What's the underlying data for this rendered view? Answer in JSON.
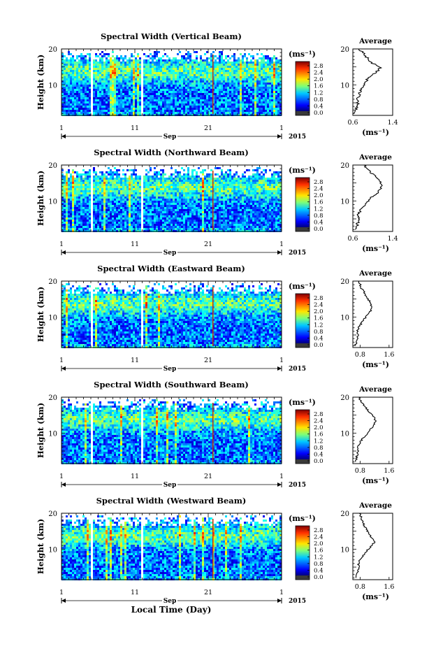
{
  "figure": {
    "xlabel": "Local Time (Day)",
    "month_label": "Sep",
    "year_label": "2015",
    "colorbar_unit": "(ms⁻¹)",
    "colorbar_ticks": [
      "0.0",
      "0.4",
      "0.8",
      "1.2",
      "1.6",
      "2.0",
      "2.4",
      "2.8"
    ],
    "avg_title": "Average",
    "avg_unit": "(ms⁻¹)"
  },
  "chart_data": [
    {
      "type": "heatmap",
      "title": "Spectral Width (Vertical Beam)",
      "ylabel": "Height (km)",
      "x_ticks": [
        "1",
        "11",
        "21",
        "1"
      ],
      "y_ticks": [
        "10",
        "20"
      ],
      "ylim": [
        1.5,
        20
      ],
      "colorbar": {
        "min": 0.0,
        "max": 2.8,
        "ticks": [
          0.0,
          0.4,
          0.8,
          1.2,
          1.6,
          2.0,
          2.4,
          2.8
        ]
      },
      "profile": {
        "title": "Average",
        "x_ticks": [
          "0.6",
          "1.4"
        ],
        "xlim": [
          0.6,
          1.4
        ],
        "height_km": [
          2,
          3,
          4,
          5,
          6,
          7,
          8,
          9,
          10,
          11,
          12,
          13,
          14,
          15,
          16,
          17,
          18,
          19,
          20
        ],
        "values": [
          0.62,
          0.66,
          0.68,
          0.7,
          0.68,
          0.72,
          0.74,
          0.78,
          0.82,
          0.86,
          0.92,
          1.02,
          1.1,
          1.16,
          1.0,
          0.92,
          0.86,
          0.8,
          0.72
        ]
      }
    },
    {
      "type": "heatmap",
      "title": "Spectral Width (Northward Beam)",
      "ylabel": "Height (km)",
      "x_ticks": [
        "1",
        "11",
        "21",
        "1"
      ],
      "y_ticks": [
        "10",
        "20"
      ],
      "ylim": [
        1.5,
        20
      ],
      "colorbar": {
        "min": 0.0,
        "max": 2.8,
        "ticks": [
          0.0,
          0.4,
          0.8,
          1.2,
          1.6,
          2.0,
          2.4,
          2.8
        ]
      },
      "profile": {
        "title": "Average",
        "x_ticks": [
          "0.6",
          "1.4"
        ],
        "xlim": [
          0.6,
          1.4
        ],
        "height_km": [
          2,
          3,
          4,
          5,
          6,
          7,
          8,
          9,
          10,
          11,
          12,
          13,
          14,
          15,
          16,
          17,
          18,
          19,
          20
        ],
        "values": [
          0.64,
          0.68,
          0.7,
          0.72,
          0.7,
          0.74,
          0.78,
          0.84,
          0.9,
          0.98,
          1.08,
          1.14,
          1.18,
          1.16,
          1.12,
          1.04,
          0.96,
          0.88,
          0.82
        ]
      }
    },
    {
      "type": "heatmap",
      "title": "Spectral Width (Eastward Beam)",
      "ylabel": "Height (km)",
      "x_ticks": [
        "1",
        "11",
        "21",
        "1"
      ],
      "y_ticks": [
        "10",
        "20"
      ],
      "ylim": [
        1.5,
        20
      ],
      "colorbar": {
        "min": 0.0,
        "max": 2.8,
        "ticks": [
          0.0,
          0.4,
          0.8,
          1.2,
          1.6,
          2.0,
          2.4,
          2.8
        ]
      },
      "profile": {
        "title": "Average",
        "x_ticks": [
          "0.8",
          "1.6"
        ],
        "xlim": [
          0.6,
          1.7
        ],
        "height_km": [
          2,
          3,
          4,
          5,
          6,
          7,
          8,
          9,
          10,
          11,
          12,
          13,
          14,
          15,
          16,
          17,
          18,
          19,
          20
        ],
        "values": [
          0.66,
          0.7,
          0.72,
          0.74,
          0.72,
          0.76,
          0.82,
          0.88,
          0.96,
          1.04,
          1.1,
          1.12,
          1.08,
          1.02,
          0.96,
          0.9,
          0.84,
          0.8,
          0.76
        ]
      }
    },
    {
      "type": "heatmap",
      "title": "Spectral Width (Southward Beam)",
      "ylabel": "Height (km)",
      "x_ticks": [
        "1",
        "11",
        "21",
        "1"
      ],
      "y_ticks": [
        "10",
        "20"
      ],
      "ylim": [
        1.5,
        20
      ],
      "colorbar": {
        "min": 0.0,
        "max": 2.8,
        "ticks": [
          0.0,
          0.4,
          0.8,
          1.2,
          1.6,
          2.0,
          2.4,
          2.8
        ]
      },
      "profile": {
        "title": "Average",
        "x_ticks": [
          "0.8",
          "1.6"
        ],
        "xlim": [
          0.6,
          1.7
        ],
        "height_km": [
          2,
          3,
          4,
          5,
          6,
          7,
          8,
          9,
          10,
          11,
          12,
          13,
          14,
          15,
          16,
          17,
          18,
          19,
          20
        ],
        "values": [
          0.66,
          0.7,
          0.72,
          0.74,
          0.74,
          0.78,
          0.84,
          0.92,
          1.0,
          1.08,
          1.16,
          1.22,
          1.2,
          1.14,
          1.04,
          0.96,
          0.88,
          0.82,
          0.76
        ]
      }
    },
    {
      "type": "heatmap",
      "title": "Spectral Width (Westward Beam)",
      "ylabel": "Height (km)",
      "x_ticks": [
        "1",
        "11",
        "21",
        "1"
      ],
      "y_ticks": [
        "10",
        "20"
      ],
      "ylim": [
        1.5,
        20
      ],
      "colorbar": {
        "min": 0.0,
        "max": 2.8,
        "ticks": [
          0.0,
          0.4,
          0.8,
          1.2,
          1.6,
          2.0,
          2.4,
          2.8
        ]
      },
      "profile": {
        "title": "Average",
        "x_ticks": [
          "0.8",
          "1.6"
        ],
        "xlim": [
          0.6,
          1.7
        ],
        "height_km": [
          2,
          3,
          4,
          5,
          6,
          7,
          8,
          9,
          10,
          11,
          12,
          13,
          14,
          15,
          16,
          17,
          18,
          19,
          20
        ],
        "values": [
          0.68,
          0.72,
          0.74,
          0.76,
          0.76,
          0.8,
          0.86,
          0.94,
          1.02,
          1.12,
          1.2,
          1.14,
          1.06,
          1.0,
          0.94,
          0.9,
          0.86,
          0.82,
          0.78
        ]
      }
    }
  ]
}
